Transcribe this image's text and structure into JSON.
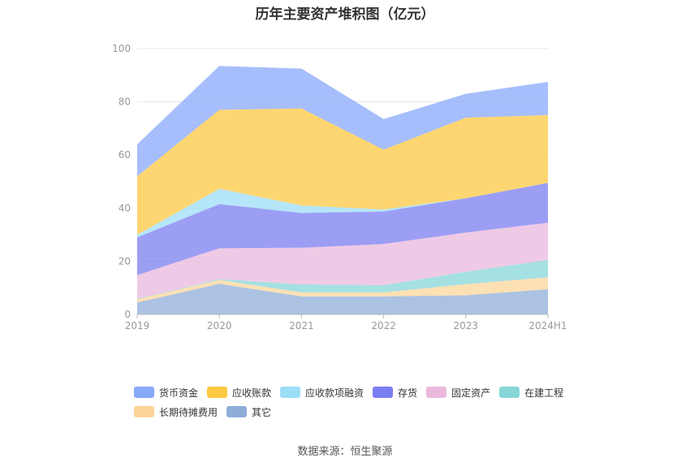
{
  "chart_data": {
    "type": "area",
    "stacked": true,
    "title": "历年主要资产堆积图（亿元）",
    "categories": [
      "2019",
      "2020",
      "2021",
      "2022",
      "2023",
      "2024H1"
    ],
    "ylim": [
      0,
      100
    ],
    "yticks": [
      0,
      20,
      40,
      60,
      80,
      100
    ],
    "grid": true,
    "legend_position": "bottom",
    "series": [
      {
        "name": "其它",
        "color": "#8fadd9",
        "values": [
          4.5,
          11.5,
          6.8,
          6.8,
          7.2,
          9.5
        ]
      },
      {
        "name": "长期待摊费用",
        "color": "#fcd59a",
        "values": [
          1.2,
          1.5,
          1.5,
          1.5,
          4.2,
          4.5
        ]
      },
      {
        "name": "在建工程",
        "color": "#87d6d8",
        "values": [
          0.2,
          0.3,
          3.0,
          2.7,
          4.7,
          6.5
        ]
      },
      {
        "name": "固定资产",
        "color": "#eab8dd",
        "values": [
          8.9,
          11.6,
          13.8,
          15.5,
          14.7,
          14.0
        ]
      },
      {
        "name": "存货",
        "color": "#7b7ef0",
        "values": [
          14.2,
          16.6,
          13.1,
          12.2,
          12.9,
          15.0
        ]
      },
      {
        "name": "应收款项融资",
        "color": "#9ddef7",
        "values": [
          1.0,
          5.8,
          2.8,
          0.8,
          0.0,
          0.0
        ]
      },
      {
        "name": "应收账款",
        "color": "#fdc842",
        "values": [
          22.0,
          29.7,
          36.5,
          22.5,
          30.3,
          25.5
        ]
      },
      {
        "name": "货币资金",
        "color": "#88a8fa",
        "values": [
          12.0,
          16.5,
          15.0,
          11.5,
          9.0,
          12.5
        ]
      }
    ],
    "legend_order": [
      "货币资金",
      "应收账款",
      "应收款项融资",
      "存货",
      "固定资产",
      "在建工程",
      "长期待摊费用",
      "其它"
    ]
  },
  "source_text": "数据来源：恒生聚源"
}
